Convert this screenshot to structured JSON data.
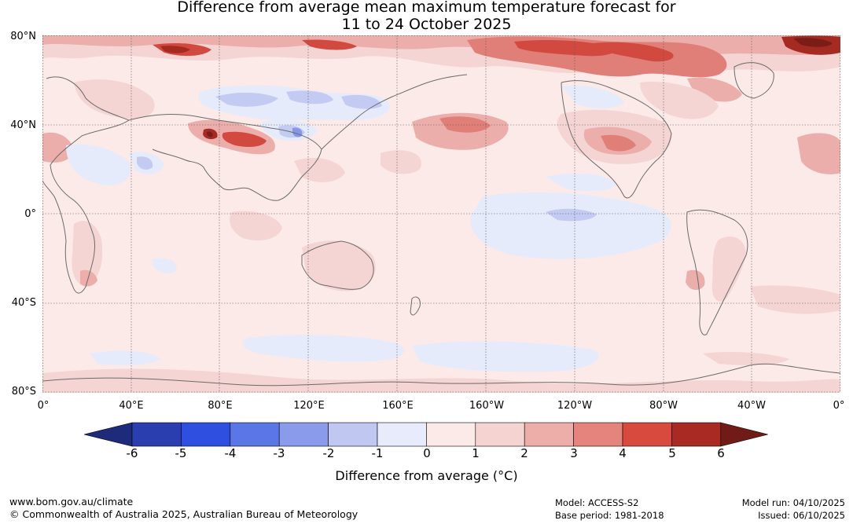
{
  "title": {
    "line1": "Difference from average mean maximum temperature forecast for",
    "line2": "11 to 24 October 2025"
  },
  "map": {
    "latitude_labels": [
      "80°N",
      "40°N",
      "0°",
      "40°S",
      "80°S"
    ],
    "longitude_labels": [
      "0°",
      "40°E",
      "80°E",
      "120°E",
      "160°E",
      "160°W",
      "120°W",
      "80°W",
      "40°W",
      "0°"
    ],
    "palette": {
      "ocean_neutral": "#fbeae8",
      "cool_light": "#e6ebfb",
      "cool_mid": "#c3cbf2",
      "cool_strong": "#8896e6",
      "warm_1": "#f4d5d3",
      "warm_2": "#ecaeaa",
      "warm_3": "#e07f77",
      "warm_4": "#d24a3f",
      "warm_5": "#a52a22",
      "warm_6": "#7a1d17",
      "coast": "#6b6b6b",
      "grid": "#555555"
    }
  },
  "colorbar": {
    "ticks": [
      "-6",
      "-5",
      "-4",
      "-3",
      "-2",
      "-1",
      "0",
      "1",
      "2",
      "3",
      "4",
      "5",
      "6"
    ],
    "low_extension_color": "#1e2a7a",
    "high_extension_color": "#711b16",
    "colors": [
      "#2a3eb0",
      "#2f4fe0",
      "#5b76e6",
      "#8a9beb",
      "#c0c7f1",
      "#e8ebfb",
      "#fbeae8",
      "#f4d3d1",
      "#edaea9",
      "#e4847c",
      "#d84a3e",
      "#a92a22"
    ],
    "label": "Difference from average (°C)"
  },
  "footer": {
    "website": "www.bom.gov.au/climate",
    "copyright": "© Commonwealth of Australia 2025, Australian Bureau of Meteorology",
    "model": "Model: ACCESS-S2",
    "base_period": "Base period: 1981-2018",
    "model_run": "Model run: 04/10/2025",
    "issued": "Issued: 06/10/2025"
  }
}
